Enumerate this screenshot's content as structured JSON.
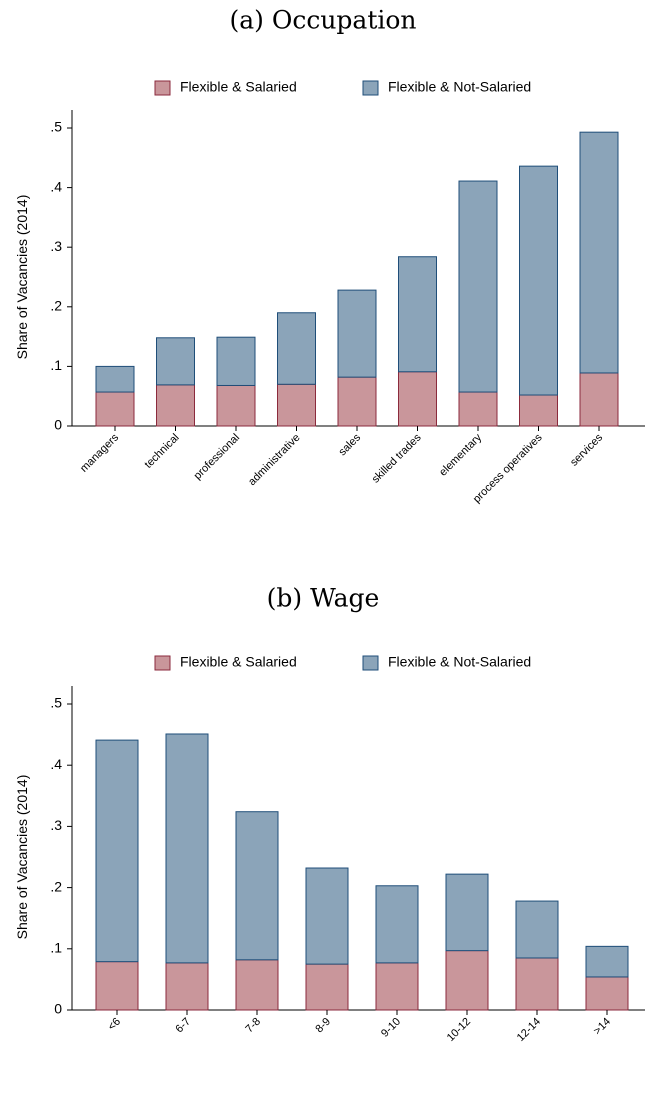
{
  "chart_data": [
    {
      "type": "stacked_bar",
      "title": "(a) Occupation",
      "y_label": "Share of Vacancies (2014)",
      "categories": [
        "managers",
        "technical",
        "professional",
        "administrative",
        "sales",
        "skilled trades",
        "elementary",
        "process operatives",
        "services"
      ],
      "series": [
        {
          "name": "Flexible & Salaried",
          "color": "#c9969b",
          "values": [
            0.057,
            0.069,
            0.068,
            0.07,
            0.082,
            0.091,
            0.057,
            0.052,
            0.089
          ]
        },
        {
          "name": "Flexible & Not-Salaried",
          "color": "#8ba4b9",
          "values": [
            0.043,
            0.079,
            0.081,
            0.12,
            0.146,
            0.193,
            0.354,
            0.384,
            0.404
          ]
        }
      ],
      "ylim": [
        0,
        0.5
      ],
      "yticks": [
        0,
        {
          "value": 0.1,
          "label": ".1"
        },
        {
          "value": 0.2,
          "label": ".2"
        },
        {
          "value": 0.3,
          "label": ".3"
        },
        {
          "value": 0.4,
          "label": ".4"
        },
        {
          "value": 0.5,
          "label": ".5"
        }
      ]
    },
    {
      "type": "stacked_bar",
      "title": "(b) Wage",
      "y_label": "Share of Vacancies (2014)",
      "categories": [
        "<6",
        "6-7",
        "7-8",
        "8-9",
        "9-10",
        "10-12",
        "12-14",
        ">14"
      ],
      "series": [
        {
          "name": "Flexible & Salaried",
          "color": "#c9969b",
          "values": [
            0.079,
            0.077,
            0.082,
            0.075,
            0.077,
            0.097,
            0.085,
            0.054
          ]
        },
        {
          "name": "Flexible & Not-Salaried",
          "color": "#8ba4b9",
          "values": [
            0.362,
            0.374,
            0.242,
            0.157,
            0.126,
            0.125,
            0.093,
            0.05
          ]
        }
      ],
      "ylim": [
        0,
        0.5
      ],
      "yticks": [
        0,
        {
          "value": 0.1,
          "label": ".1"
        },
        {
          "value": 0.2,
          "label": ".2"
        },
        {
          "value": 0.3,
          "label": ".3"
        },
        {
          "value": 0.4,
          "label": ".4"
        },
        {
          "value": 0.5,
          "label": ".5"
        }
      ]
    }
  ]
}
